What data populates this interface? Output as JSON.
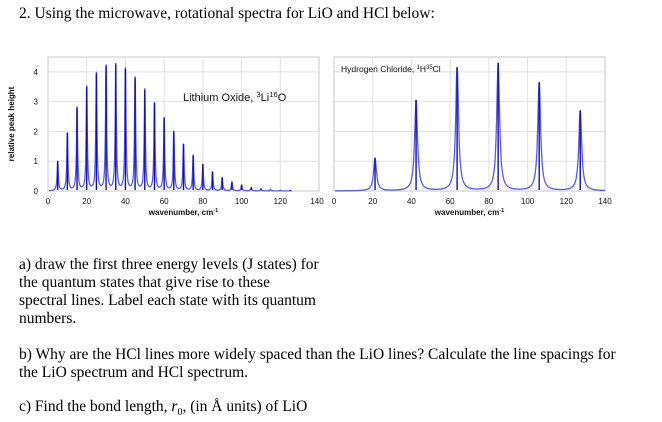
{
  "heading": "2. Using the microwave, rotational spectra for LiO and HCl below:",
  "chart_data": [
    {
      "type": "line",
      "title": "Lithium Oxide, 3Li16O",
      "annotation": {
        "pre": "Lithium Oxide, ",
        "sup1": "3",
        "mid": "Li",
        "sup2": "16",
        "post": "O"
      },
      "xlabel": "wavenumber, cm-1",
      "xlabel_parts": {
        "text": "wavenumber, cm",
        "sup": "-1"
      },
      "ylabel": "relative peak height",
      "xlim": [
        0,
        140
      ],
      "ylim": [
        0,
        4.5
      ],
      "xticks": [
        0,
        20,
        40,
        60,
        80,
        100,
        120,
        140
      ],
      "yticks": [
        0,
        1,
        2,
        3,
        4
      ],
      "grid": true,
      "color": "#1010b0",
      "peaks_x": [
        5,
        10,
        15,
        20,
        25,
        30,
        35,
        40,
        45,
        50,
        55,
        60,
        65,
        70,
        75,
        80,
        85,
        90,
        95,
        100,
        105,
        110,
        115,
        120,
        125
      ],
      "peaks_y": [
        1.0,
        1.95,
        2.8,
        3.5,
        3.95,
        4.2,
        4.25,
        4.1,
        3.8,
        3.4,
        2.95,
        2.45,
        2.0,
        1.57,
        1.2,
        0.9,
        0.65,
        0.45,
        0.3,
        0.2,
        0.12,
        0.07,
        0.04,
        0.02,
        0.01
      ]
    },
    {
      "type": "line",
      "title": "Hydrogen Chloride, 1H35Cl",
      "annotation": {
        "pre": "Hydrogen Chloride, ",
        "sup1": "1",
        "mid": "H",
        "sup2": "35",
        "post": "Cl"
      },
      "xlabel": "wavenumber, cm-1",
      "xlabel_parts": {
        "text": "wavenumber, cm",
        "sup": "-1"
      },
      "xlim": [
        0,
        140
      ],
      "ylim": [
        0,
        4.5
      ],
      "xticks": [
        0,
        20,
        40,
        60,
        80,
        100,
        120,
        140
      ],
      "grid": true,
      "color": "#1010b0",
      "peaks_x": [
        21.2,
        42.4,
        63.6,
        84.8,
        106.0,
        127.2
      ],
      "peaks_y": [
        1.1,
        3.05,
        4.15,
        4.3,
        3.65,
        2.7
      ]
    }
  ],
  "questions": {
    "a": [
      "a) draw the first three energy levels (J states) for",
      "the quantum states that give rise to these",
      "spectral lines. Label each state with its quantum",
      "numbers."
    ],
    "b": [
      "b) Why are the HCl lines more widely spaced than the LiO lines? Calculate the line spacings for",
      "the LiO spectrum and HCl spectrum."
    ],
    "c": {
      "pre": "c) Find the bond length, ",
      "r": "r",
      "sub": "0",
      "post": ", (in Å units) of LiO"
    }
  }
}
